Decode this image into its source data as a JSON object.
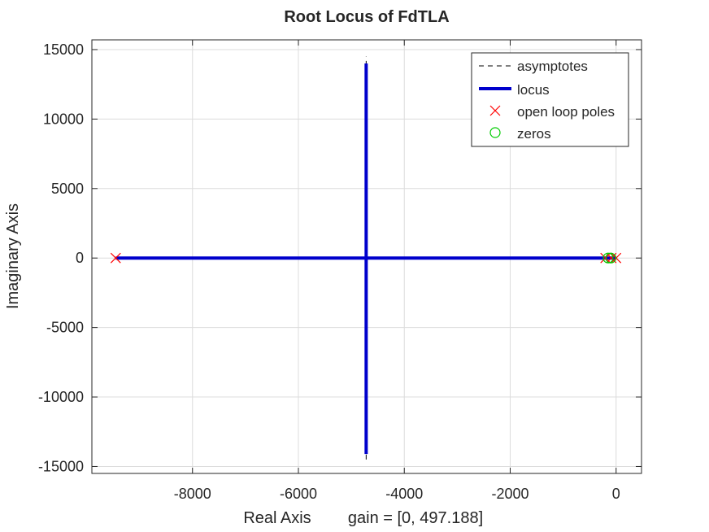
{
  "chart_data": {
    "type": "scatter",
    "title": "Root Locus of FdTLA",
    "xlabel": "Real Axis",
    "gain_text": "gain = [0, 497.188]",
    "ylabel": "Imaginary Axis",
    "xlim": [
      -9900,
      480
    ],
    "ylim": [
      -15500,
      15700
    ],
    "xticks": [
      -8000,
      -6000,
      -4000,
      -2000,
      0
    ],
    "xtick_labels": [
      "-8000",
      "-6000",
      "-4000",
      "-2000",
      "0"
    ],
    "yticks": [
      15000,
      10000,
      5000,
      0,
      -5000,
      -10000,
      -15000
    ],
    "ytick_labels": [
      "15000",
      "10000",
      "5000",
      "0",
      "-5000",
      "-10000",
      "-15000"
    ],
    "grid": true,
    "legend_position": "top-right",
    "legend": [
      {
        "label": "asymptotes",
        "style": "dashed-line"
      },
      {
        "label": "locus",
        "style": "thick-line"
      },
      {
        "label": "open loop poles",
        "style": "x-marker"
      },
      {
        "label": "zeros",
        "style": "circle-marker"
      }
    ],
    "locus": [
      {
        "x": [
          -9450,
          -4720
        ],
        "y": [
          0,
          0
        ]
      },
      {
        "x": [
          -4720,
          0
        ],
        "y": [
          0,
          0
        ]
      },
      {
        "x": [
          -4720,
          -4720
        ],
        "y": [
          0,
          14000
        ]
      },
      {
        "x": [
          -4720,
          -4720
        ],
        "y": [
          0,
          -14100
        ]
      }
    ],
    "asymptotes": [
      {
        "x": [
          -4720,
          -4720
        ],
        "y": [
          -14500,
          14500
        ]
      }
    ],
    "open_loop_poles": {
      "x": [
        -9450,
        -200,
        -90,
        0
      ],
      "y": [
        0,
        0,
        0,
        0
      ]
    },
    "zeros": {
      "x": [
        -150,
        -100
      ],
      "y": [
        0,
        0
      ]
    },
    "colors": {
      "locus": "#0000cc",
      "asymptotes": "#000000",
      "poles": "#ff0000",
      "zeros": "#00cc00",
      "grid": "#dcdcdc",
      "axes": "#262626"
    }
  }
}
